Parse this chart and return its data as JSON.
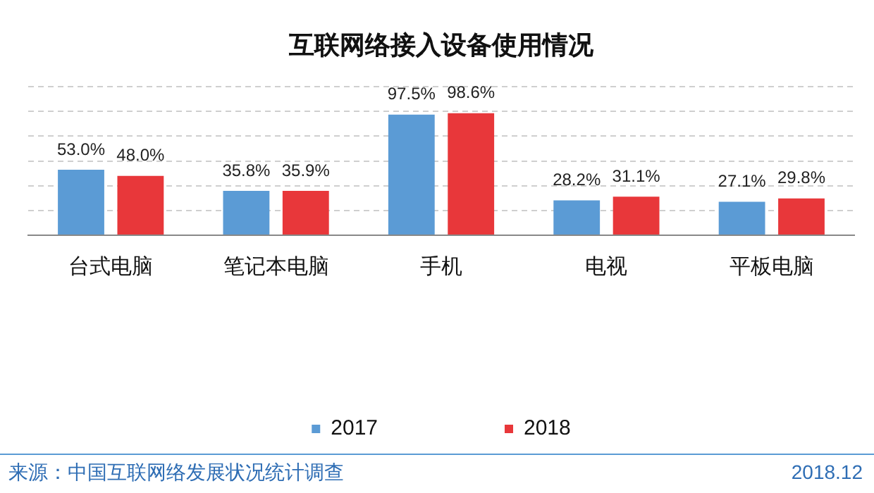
{
  "chart_data": {
    "type": "bar",
    "title": "互联网络接入设备使用情况",
    "categories": [
      "台式电脑",
      "笔记本电脑",
      "手机",
      "电视",
      "平板电脑"
    ],
    "series": [
      {
        "name": "2017",
        "color": "#5b9bd5",
        "values": [
          53.0,
          35.8,
          97.5,
          28.2,
          27.1
        ],
        "value_labels": [
          "53.0%",
          "35.8%",
          "97.5%",
          "28.2%",
          "27.1%"
        ]
      },
      {
        "name": "2018",
        "color": "#e8373a",
        "values": [
          48.0,
          35.9,
          98.6,
          31.1,
          29.8
        ],
        "value_labels": [
          "48.0%",
          "35.9%",
          "98.6%",
          "31.1%",
          "29.8%"
        ]
      }
    ],
    "ylim": [
      0,
      120
    ],
    "yticks": [
      {
        "value": 0,
        "label": null
      },
      {
        "value": 20,
        "label": null
      },
      {
        "value": 40,
        "label": null
      },
      {
        "value": 60,
        "label": null
      },
      {
        "value": 80,
        "label": null
      },
      {
        "value": 100,
        "label": null
      },
      {
        "value": 120,
        "label": null
      }
    ],
    "tick_labels": "x",
    "grid": "y",
    "legend": "bottom",
    "annotations": [
      "来源：中国互联网络发展状况统计调查",
      "2018.12"
    ]
  }
}
